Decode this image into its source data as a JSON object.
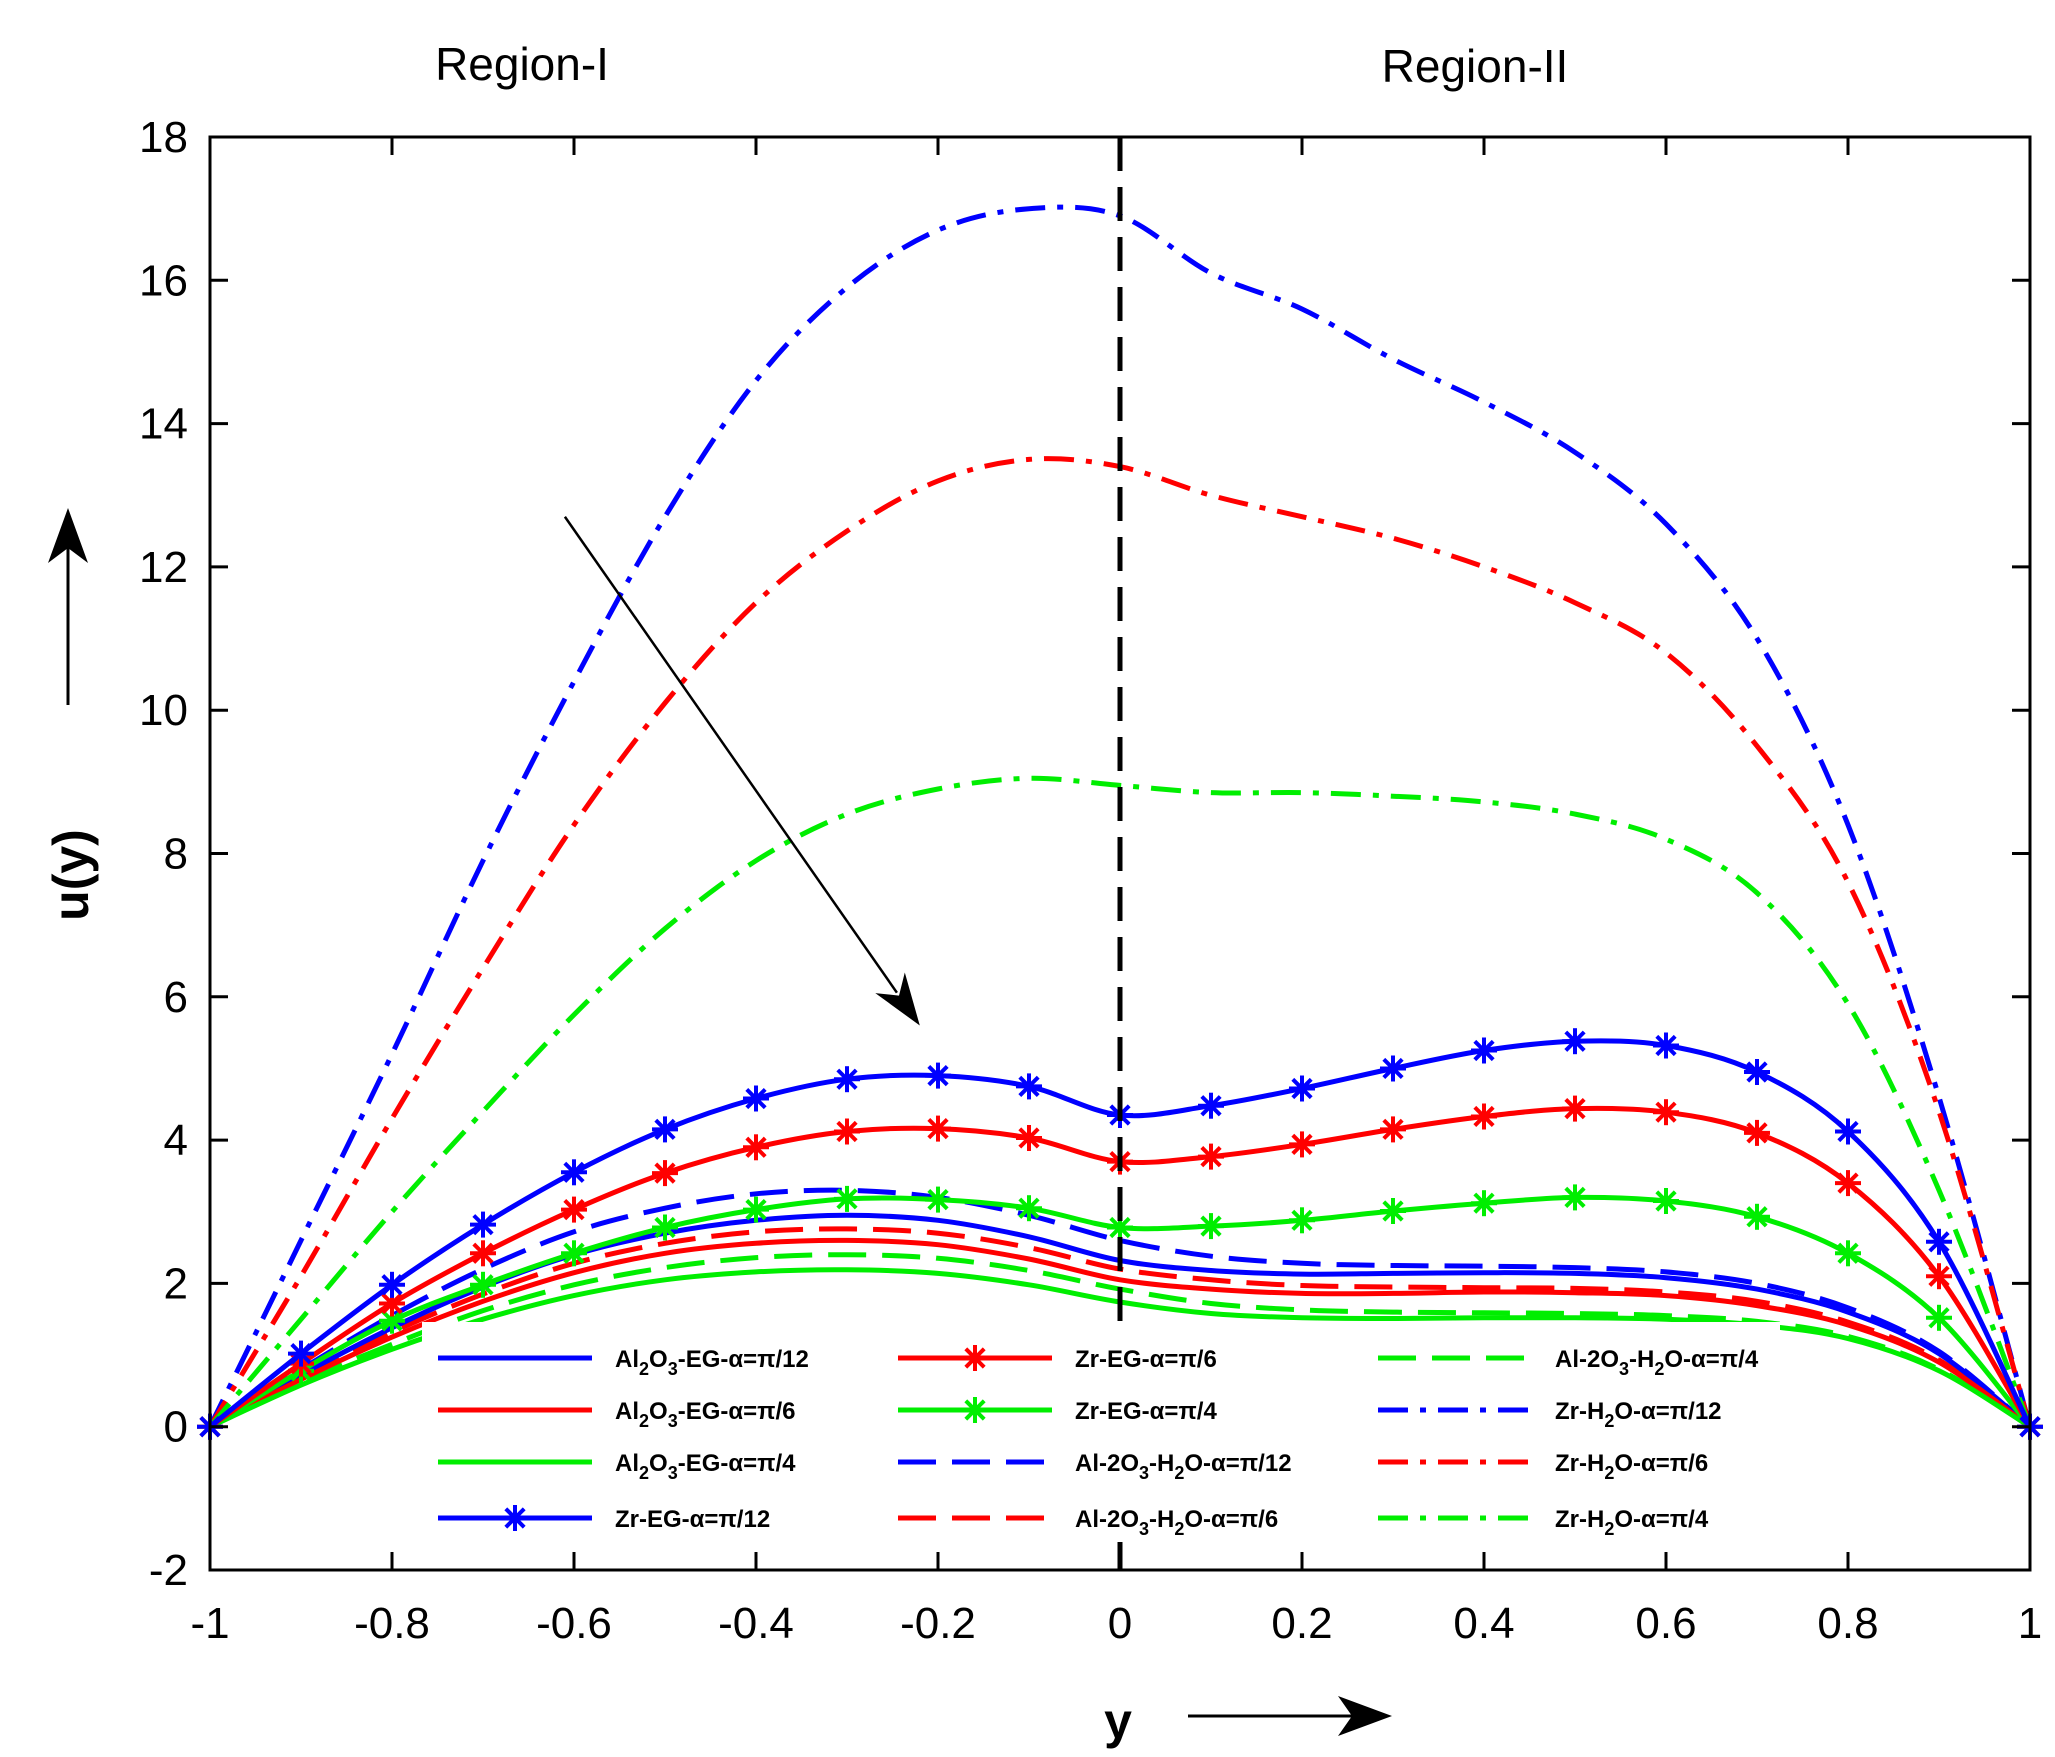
{
  "chart_data": {
    "type": "line",
    "title": "",
    "xlabel": "y",
    "ylabel": "u(y)",
    "xlim": [
      -1,
      1
    ],
    "ylim": [
      -2,
      18
    ],
    "xticks": [
      -1,
      -0.8,
      -0.6,
      -0.4,
      -0.2,
      0,
      0.2,
      0.4,
      0.6,
      0.8,
      1
    ],
    "xtick_labels": [
      "-1",
      "-0.8",
      "-0.6",
      "-0.4",
      "-0.2",
      "0",
      "0.2",
      "0.4",
      "0.6",
      "0.8",
      "1"
    ],
    "yticks": [
      -2,
      0,
      2,
      4,
      6,
      8,
      10,
      12,
      14,
      16,
      18
    ],
    "ytick_labels": [
      "-2",
      "0",
      "2",
      "4",
      "6",
      "8",
      "10",
      "12",
      "14",
      "16",
      "18"
    ],
    "grid": false,
    "legend_position": "lower-center",
    "annotations": {
      "region_left": "Region-I",
      "region_right": "Region-II",
      "interface_x": 0,
      "trend_arrow_from": [
        -0.61,
        12.7
      ],
      "trend_arrow_to": [
        -0.22,
        5.6
      ]
    },
    "x": [
      -1,
      -0.9,
      -0.8,
      -0.7,
      -0.6,
      -0.5,
      -0.4,
      -0.3,
      -0.2,
      -0.1,
      0,
      0.1,
      0.2,
      0.3,
      0.4,
      0.5,
      0.6,
      0.7,
      0.8,
      0.9,
      1
    ],
    "series": [
      {
        "name": "Al2O3-EG-α=π/12",
        "legend_main": "Al",
        "legend_sub": "2",
        "legend_tail": "O",
        "legend_sub2": "3",
        "legend_rest": "-EG-α=π/12",
        "color": "#0000ff",
        "dash": "solid",
        "marker": "none",
        "values": [
          0,
          0.72,
          1.38,
          1.95,
          2.4,
          2.7,
          2.88,
          2.95,
          2.88,
          2.65,
          2.32,
          2.18,
          2.13,
          2.14,
          2.15,
          2.14,
          2.08,
          1.92,
          1.6,
          1.02,
          0
        ]
      },
      {
        "name": "Al2O3-EG-α=π/6",
        "legend_main": "Al",
        "legend_sub": "2",
        "legend_tail": "O",
        "legend_sub2": "3",
        "legend_rest": "-EG-α=π/6",
        "color": "#ff0000",
        "dash": "solid",
        "marker": "none",
        "values": [
          0,
          0.66,
          1.25,
          1.75,
          2.15,
          2.42,
          2.56,
          2.6,
          2.54,
          2.34,
          2.05,
          1.92,
          1.86,
          1.86,
          1.88,
          1.87,
          1.83,
          1.69,
          1.42,
          0.9,
          0
        ]
      },
      {
        "name": "Al2O3-EG-α=π/4",
        "legend_main": "Al",
        "legend_sub": "2",
        "legend_tail": "O",
        "legend_sub2": "3",
        "legend_rest": "-EG-α=π/4",
        "color": "#00ee00",
        "dash": "solid",
        "marker": "none",
        "values": [
          0,
          0.58,
          1.08,
          1.5,
          1.83,
          2.05,
          2.16,
          2.19,
          2.14,
          1.98,
          1.74,
          1.58,
          1.52,
          1.51,
          1.52,
          1.52,
          1.5,
          1.42,
          1.23,
          0.78,
          0
        ]
      },
      {
        "name": "Zr-EG-α=π/12",
        "legend_main": "Zr-EG-α=π/12",
        "legend_sub": "",
        "legend_tail": "",
        "legend_sub2": "",
        "legend_rest": "",
        "color": "#0000ff",
        "dash": "solid",
        "marker": "asterisk",
        "values": [
          0,
          1.02,
          1.98,
          2.82,
          3.55,
          4.15,
          4.58,
          4.85,
          4.9,
          4.75,
          4.35,
          4.48,
          4.72,
          5.0,
          5.25,
          5.38,
          5.32,
          4.95,
          4.12,
          2.58,
          0
        ]
      },
      {
        "name": "Zr-EG-α=π/6",
        "legend_main": "Zr-EG-α=π/6",
        "legend_sub": "",
        "legend_tail": "",
        "legend_sub2": "",
        "legend_rest": "",
        "color": "#ff0000",
        "dash": "solid",
        "marker": "asterisk",
        "values": [
          0,
          0.88,
          1.72,
          2.42,
          3.03,
          3.54,
          3.9,
          4.12,
          4.16,
          4.03,
          3.7,
          3.77,
          3.94,
          4.15,
          4.33,
          4.44,
          4.39,
          4.1,
          3.4,
          2.1,
          0
        ]
      },
      {
        "name": "Zr-EG-α=π/4",
        "legend_main": "Zr-EG-α=π/4",
        "legend_sub": "",
        "legend_tail": "",
        "legend_sub2": "",
        "legend_rest": "",
        "color": "#00ee00",
        "dash": "solid",
        "marker": "asterisk",
        "values": [
          0,
          0.78,
          1.48,
          1.98,
          2.42,
          2.78,
          3.03,
          3.18,
          3.17,
          3.05,
          2.78,
          2.8,
          2.88,
          3.01,
          3.12,
          3.2,
          3.15,
          2.93,
          2.42,
          1.52,
          0
        ]
      },
      {
        "name": "Al-2O3-H2O-α=π/12",
        "legend_main": "Al-2O",
        "legend_sub": "3",
        "legend_tail": "-H",
        "legend_sub2": "2",
        "legend_rest": "O-α=π/12",
        "color": "#0000ff",
        "dash": "dash",
        "marker": "none",
        "values": [
          0,
          0.8,
          1.55,
          2.2,
          2.72,
          3.05,
          3.25,
          3.3,
          3.2,
          2.95,
          2.6,
          2.38,
          2.28,
          2.25,
          2.24,
          2.22,
          2.16,
          2.0,
          1.66,
          1.05,
          0
        ]
      },
      {
        "name": "Al-2O3-H2O-α=π/6",
        "legend_main": "Al-2O",
        "legend_sub": "3",
        "legend_tail": "-H",
        "legend_sub2": "2",
        "legend_rest": "O-α=π/6",
        "color": "#ff0000",
        "dash": "dash",
        "marker": "none",
        "values": [
          0,
          0.7,
          1.32,
          1.85,
          2.28,
          2.56,
          2.72,
          2.76,
          2.7,
          2.5,
          2.2,
          2.05,
          1.97,
          1.95,
          1.94,
          1.93,
          1.88,
          1.75,
          1.46,
          0.93,
          0
        ]
      },
      {
        "name": "Al-2O3-H2O-α=π/4",
        "legend_main": "Al-2O",
        "legend_sub": "3",
        "legend_tail": "-H",
        "legend_sub2": "2",
        "legend_rest": "O-α=π/4",
        "color": "#00ee00",
        "dash": "dash",
        "marker": "none",
        "values": [
          0,
          0.62,
          1.15,
          1.62,
          1.98,
          2.22,
          2.36,
          2.4,
          2.35,
          2.18,
          1.92,
          1.72,
          1.63,
          1.6,
          1.59,
          1.58,
          1.55,
          1.47,
          1.26,
          0.8,
          0
        ]
      },
      {
        "name": "Zr-H2O-α=π/12",
        "legend_main": "Zr-H",
        "legend_sub": "2",
        "legend_tail": "O-α=π/12",
        "legend_sub2": "",
        "legend_rest": "",
        "color": "#0000ff",
        "dash": "dashdot",
        "marker": "none",
        "values": [
          0,
          2.6,
          5.2,
          7.9,
          10.4,
          12.7,
          14.6,
          15.9,
          16.7,
          17.0,
          16.9,
          16.1,
          15.6,
          14.9,
          14.3,
          13.6,
          12.6,
          11.0,
          8.4,
          4.6,
          0
        ]
      },
      {
        "name": "Zr-H2O-α=π/6",
        "legend_main": "Zr-H",
        "legend_sub": "2",
        "legend_tail": "O-α=π/6",
        "legend_sub2": "",
        "legend_rest": "",
        "color": "#ff0000",
        "dash": "dashdot",
        "marker": "none",
        "values": [
          0,
          2.1,
          4.3,
          6.4,
          8.4,
          10.1,
          11.5,
          12.5,
          13.2,
          13.5,
          13.4,
          13.0,
          12.7,
          12.4,
          12.0,
          11.5,
          10.8,
          9.5,
          7.6,
          4.4,
          0
        ]
      },
      {
        "name": "Zr-H2O-α=π/4",
        "legend_main": "Zr-H",
        "legend_sub": "2",
        "legend_tail": "O-α=π/4",
        "legend_sub2": "",
        "legend_rest": "",
        "color": "#00ee00",
        "dash": "dashdot",
        "marker": "none",
        "values": [
          0,
          1.5,
          3.0,
          4.4,
          5.75,
          6.95,
          7.9,
          8.55,
          8.9,
          9.05,
          8.95,
          8.85,
          8.85,
          8.8,
          8.72,
          8.55,
          8.2,
          7.45,
          5.9,
          3.3,
          0
        ]
      }
    ]
  }
}
